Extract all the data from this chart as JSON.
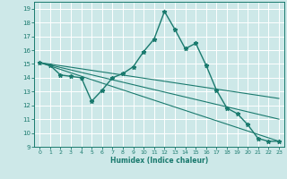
{
  "xlabel": "Humidex (Indice chaleur)",
  "xlim": [
    -0.5,
    23.5
  ],
  "ylim": [
    9,
    19.5
  ],
  "yticks": [
    9,
    10,
    11,
    12,
    13,
    14,
    15,
    16,
    17,
    18,
    19
  ],
  "xticks": [
    0,
    1,
    2,
    3,
    4,
    5,
    6,
    7,
    8,
    9,
    10,
    11,
    12,
    13,
    14,
    15,
    16,
    17,
    18,
    19,
    20,
    21,
    22,
    23
  ],
  "bg_color": "#cde8e8",
  "grid_color": "#ffffff",
  "line_color": "#1a7a6e",
  "main_line": {
    "x": [
      0,
      1,
      2,
      3,
      4,
      5,
      6,
      7,
      8,
      9,
      10,
      11,
      12,
      13,
      14,
      15,
      16,
      17,
      18,
      19,
      20,
      21,
      22,
      23
    ],
    "y": [
      15.1,
      14.9,
      14.2,
      14.1,
      14.0,
      12.3,
      13.1,
      14.0,
      14.3,
      14.8,
      15.9,
      16.8,
      18.8,
      17.5,
      16.1,
      16.5,
      14.9,
      13.1,
      11.8,
      11.4,
      10.6,
      9.6,
      9.4,
      9.4
    ]
  },
  "straight_lines": [
    {
      "x": [
        0,
        23
      ],
      "y": [
        15.1,
        9.4
      ]
    },
    {
      "x": [
        0,
        23
      ],
      "y": [
        15.1,
        11.0
      ]
    },
    {
      "x": [
        0,
        23
      ],
      "y": [
        15.1,
        12.5
      ]
    }
  ]
}
